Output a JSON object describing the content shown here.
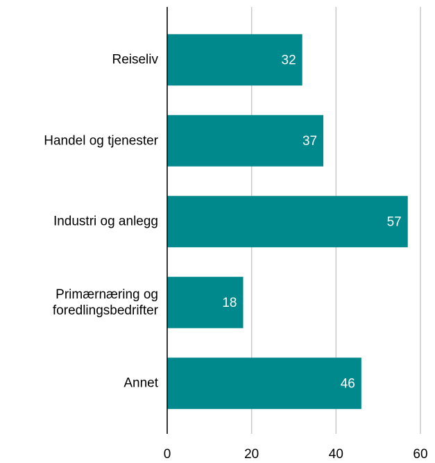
{
  "chart_data": {
    "type": "bar",
    "orientation": "horizontal",
    "categories": [
      "Reiseliv",
      "Handel og tjenester",
      "Industri og anlegg",
      "Primærnæring og foredlingsbedrifter",
      "Annet"
    ],
    "values": [
      32,
      37,
      57,
      18,
      46
    ],
    "color": "#00898c",
    "xlim": [
      0,
      60
    ],
    "xticks": [
      0,
      20,
      40,
      60
    ],
    "grid": true
  }
}
